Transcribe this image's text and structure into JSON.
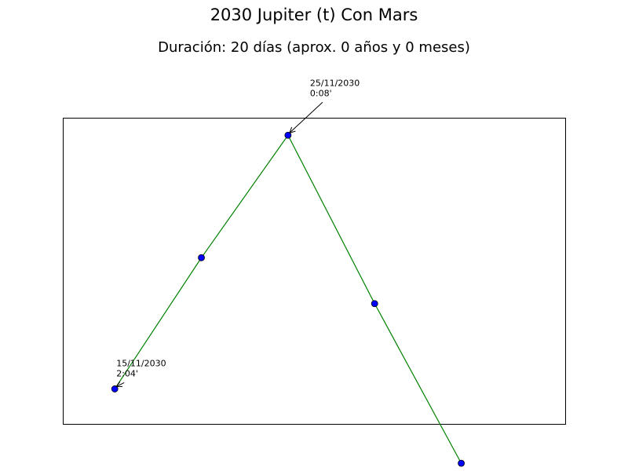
{
  "chart_data": {
    "type": "line",
    "title": "2030 Jupiter (t) Con Mars",
    "subtitle": "Duración: 20 días (aprox. 0 años y 0 meses)",
    "x_unit": "date",
    "x": [
      "15/11/2030",
      "20/11/2030",
      "25/11/2030",
      "30/11/2030",
      "05/12/2030"
    ],
    "series": [
      {
        "values": [
          124,
          64,
          8,
          85,
          158
        ]
      }
    ],
    "y_inverted": true,
    "xlim": [
      "12/11/2030",
      "11/12/2030"
    ],
    "ylim": [
      140,
      0
    ],
    "ylim_note": "",
    "axis_ticks_visible": false,
    "grid": false,
    "line_color": "#008000",
    "marker_color": "#0000ff",
    "annotations": [
      {
        "point_index": 0,
        "date": "15/11/2030",
        "value": "2:04'"
      },
      {
        "point_index": 2,
        "date": "25/11/2030",
        "value": "0:08'"
      }
    ]
  }
}
